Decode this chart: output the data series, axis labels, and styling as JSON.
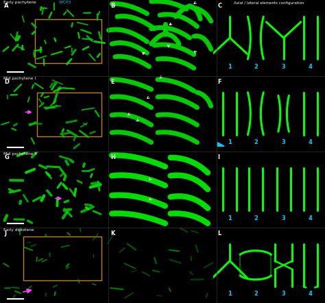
{
  "bg_color": "#000000",
  "green": "#00dd00",
  "bright_green": "#00ff00",
  "cyan": "#00ccff",
  "white": "#ffffff",
  "yellow": "#bb8800",
  "magenta": "#ff44ff",
  "row_labels": [
    "Early pachytene",
    "Mid pachytene I",
    "Mid pachytene II",
    "Early diplotene"
  ],
  "panel_labels": [
    [
      "A",
      "B",
      "C"
    ],
    [
      "D",
      "E",
      "F"
    ],
    [
      "G",
      "H",
      "I"
    ],
    [
      "J",
      "K",
      "L"
    ]
  ],
  "col3_title": "Axial / lateral elements configuration",
  "numbers": [
    "1",
    "2",
    "3",
    "4"
  ]
}
